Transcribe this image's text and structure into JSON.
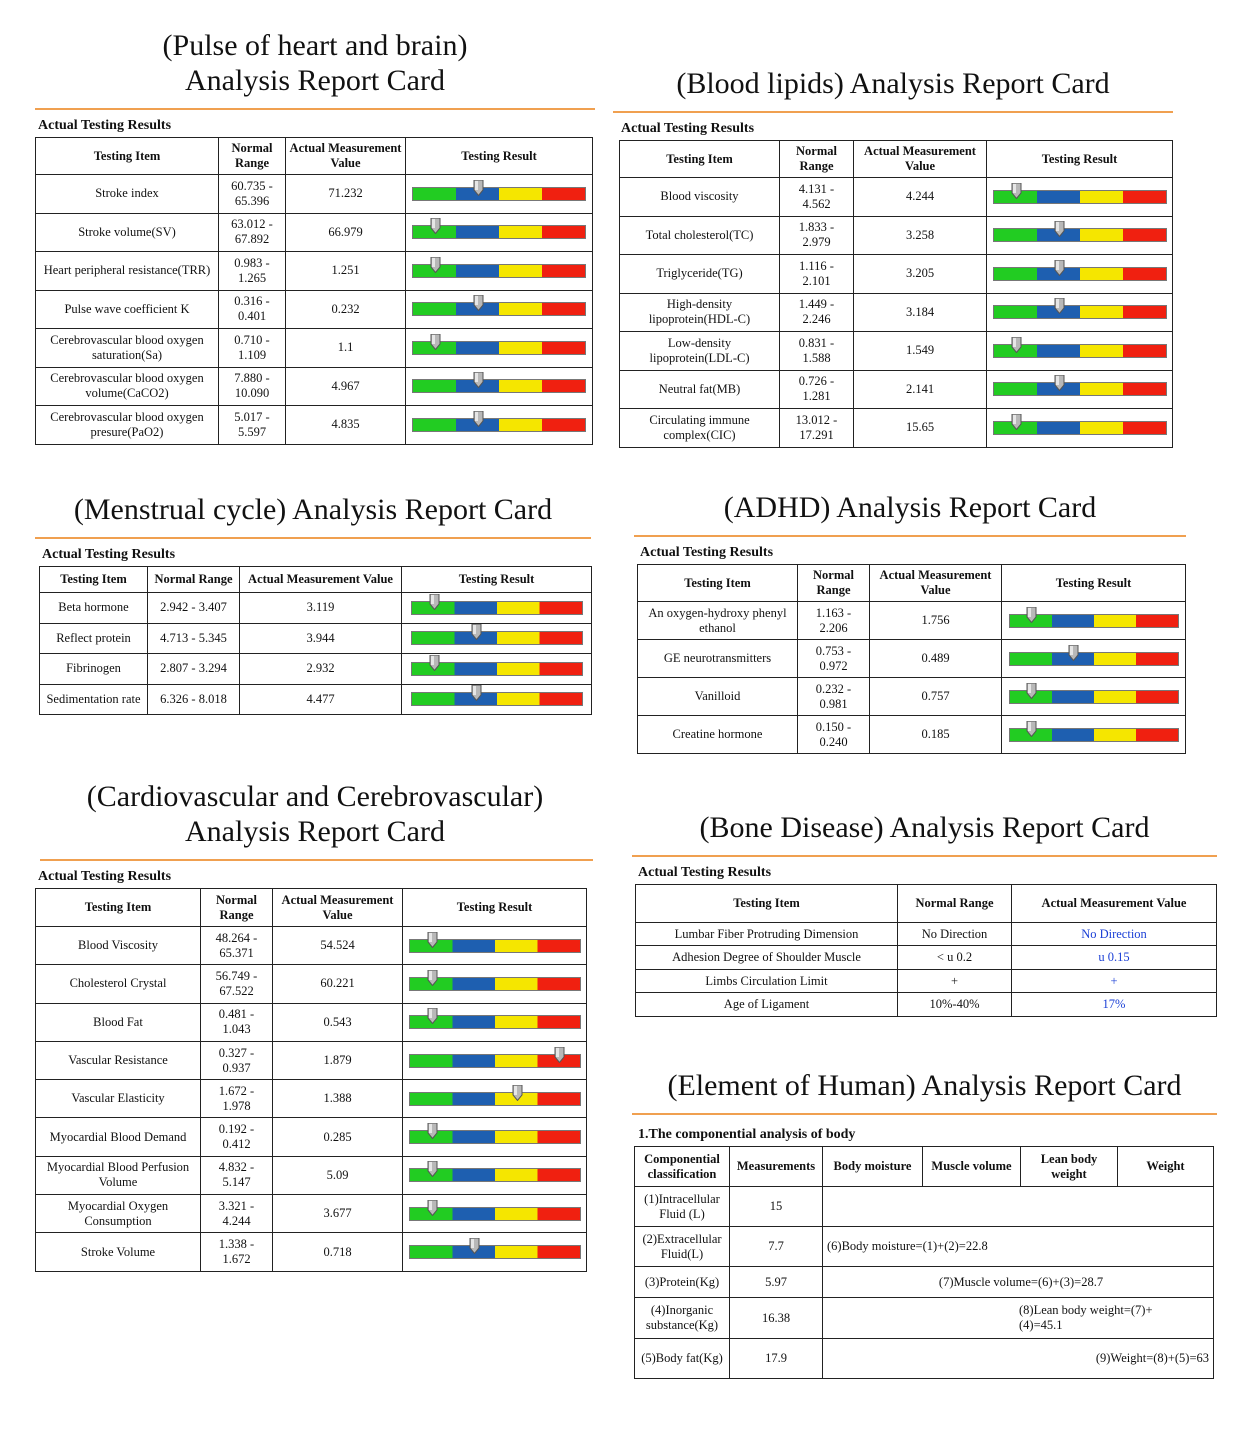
{
  "header_label": "Actual Testing Results",
  "columns": {
    "item": "Testing Item",
    "range": "Normal Range",
    "value": "Actual Measurement Value",
    "result": "Testing Result"
  },
  "bar_colors": [
    "#22cc22",
    "#1e5fb0",
    "#f5e600",
    "#f02010"
  ],
  "cards": {
    "heart_brain": {
      "title": "(Pulse of heart and brain)\nAnalysis Report Card",
      "rows": [
        {
          "item": "Stroke index",
          "range": "60.735 - 65.396",
          "value": "71.232",
          "pos": 0.38
        },
        {
          "item": "Stroke volume(SV)",
          "range": "63.012 - 67.892",
          "value": "66.979",
          "pos": 0.13
        },
        {
          "item": "Heart peripheral resistance(TRR)",
          "range": "0.983 - 1.265",
          "value": "1.251",
          "pos": 0.13
        },
        {
          "item": "Pulse wave coefficient K",
          "range": "0.316 - 0.401",
          "value": "0.232",
          "pos": 0.38
        },
        {
          "item": "Cerebrovascular blood oxygen saturation(Sa)",
          "range": "0.710 - 1.109",
          "value": "1.1",
          "pos": 0.13
        },
        {
          "item": "Cerebrovascular blood oxygen volume(CaCO2)",
          "range": "7.880 - 10.090",
          "value": "4.967",
          "pos": 0.38
        },
        {
          "item": "Cerebrovascular blood oxygen presure(PaO2)",
          "range": "5.017 - 5.597",
          "value": "4.835",
          "pos": 0.38
        }
      ]
    },
    "blood_lipids": {
      "title": "(Blood lipids) Analysis Report Card",
      "rows": [
        {
          "item": "Blood viscosity",
          "range": "4.131 - 4.562",
          "value": "4.244",
          "pos": 0.13
        },
        {
          "item": "Total cholesterol(TC)",
          "range": "1.833 - 2.979",
          "value": "3.258",
          "pos": 0.38
        },
        {
          "item": "Triglyceride(TG)",
          "range": "1.116 - 2.101",
          "value": "3.205",
          "pos": 0.38
        },
        {
          "item": "High-density lipoprotein(HDL-C)",
          "range": "1.449 - 2.246",
          "value": "3.184",
          "pos": 0.38
        },
        {
          "item": "Low-density lipoprotein(LDL-C)",
          "range": "0.831 - 1.588",
          "value": "1.549",
          "pos": 0.13
        },
        {
          "item": "Neutral fat(MB)",
          "range": "0.726 - 1.281",
          "value": "2.141",
          "pos": 0.38
        },
        {
          "item": "Circulating immune complex(CIC)",
          "range": "13.012 - 17.291",
          "value": "15.65",
          "pos": 0.13
        }
      ]
    },
    "menstrual": {
      "title": "(Menstrual cycle) Analysis Report Card",
      "rows": [
        {
          "item": "Beta hormone",
          "range": "2.942 - 3.407",
          "value": "3.119",
          "pos": 0.13
        },
        {
          "item": "Reflect protein",
          "range": "4.713 - 5.345",
          "value": "3.944",
          "pos": 0.38
        },
        {
          "item": "Fibrinogen",
          "range": "2.807 - 3.294",
          "value": "2.932",
          "pos": 0.13
        },
        {
          "item": "Sedimentation rate",
          "range": "6.326 - 8.018",
          "value": "4.477",
          "pos": 0.38
        }
      ]
    },
    "adhd": {
      "title": "(ADHD) Analysis Report Card",
      "rows": [
        {
          "item": "An oxygen-hydroxy phenyl ethanol",
          "range": "1.163 - 2.206",
          "value": "1.756",
          "pos": 0.13
        },
        {
          "item": "GE neurotransmitters",
          "range": "0.753 - 0.972",
          "value": "0.489",
          "pos": 0.38
        },
        {
          "item": "Vanilloid",
          "range": "0.232 - 0.981",
          "value": "0.757",
          "pos": 0.13
        },
        {
          "item": "Creatine hormone",
          "range": "0.150 - 0.240",
          "value": "0.185",
          "pos": 0.13
        }
      ]
    },
    "cardio": {
      "title": "(Cardiovascular and Cerebrovascular)\nAnalysis Report Card",
      "rows": [
        {
          "item": "Blood Viscosity",
          "range": "48.264 - 65.371",
          "value": "54.524",
          "pos": 0.13
        },
        {
          "item": "Cholesterol Crystal",
          "range": "56.749 - 67.522",
          "value": "60.221",
          "pos": 0.13
        },
        {
          "item": "Blood Fat",
          "range": "0.481 - 1.043",
          "value": "0.543",
          "pos": 0.13
        },
        {
          "item": "Vascular Resistance",
          "range": "0.327 - 0.937",
          "value": "1.879",
          "pos": 0.88
        },
        {
          "item": "Vascular Elasticity",
          "range": "1.672 - 1.978",
          "value": "1.388",
          "pos": 0.63
        },
        {
          "item": "Myocardial Blood Demand",
          "range": "0.192 - 0.412",
          "value": "0.285",
          "pos": 0.13
        },
        {
          "item": "Myocardial Blood Perfusion Volume",
          "range": "4.832 - 5.147",
          "value": "5.09",
          "pos": 0.13
        },
        {
          "item": "Myocardial Oxygen Consumption",
          "range": "3.321 - 4.244",
          "value": "3.677",
          "pos": 0.13
        },
        {
          "item": "Stroke Volume",
          "range": "1.338 - 1.672",
          "value": "0.718",
          "pos": 0.38
        }
      ]
    },
    "bone": {
      "title": "(Bone Disease) Analysis Report Card",
      "rows": [
        {
          "item": "Lumbar Fiber Protruding Dimension",
          "range": "No Direction",
          "value": "No Direction"
        },
        {
          "item": "Adhesion Degree of Shoulder Muscle",
          "range": "< u 0.2",
          "value": "u 0.15"
        },
        {
          "item": "Limbs Circulation Limit",
          "range": "+",
          "value": "+"
        },
        {
          "item": "Age of Ligament",
          "range": "10%-40%",
          "value": "17%"
        }
      ]
    },
    "element": {
      "title": "(Element of Human) Analysis Report Card",
      "subtitle": "1.The componential analysis of body",
      "headers": [
        "Componential classification",
        "Measurements",
        "Body moisture",
        "Muscle volume",
        "Lean body weight",
        "Weight"
      ],
      "rows": [
        {
          "item": "(1)Intracellular Fluid (L)",
          "value": "15",
          "note": ""
        },
        {
          "item": "(2)Extracellular Fluid(L)",
          "value": "7.7",
          "note": "(6)Body moisture=(1)+(2)=22.8"
        },
        {
          "item": "(3)Protein(Kg)",
          "value": "5.97",
          "note": "(7)Muscle volume=(6)+(3)=28.7"
        },
        {
          "item": "(4)Inorganic substance(Kg)",
          "value": "16.38",
          "note": "(8)Lean body weight=(7)+(4)=45.1"
        },
        {
          "item": "(5)Body fat(Kg)",
          "value": "17.9",
          "note": "(9)Weight=(8)+(5)=63"
        }
      ]
    }
  }
}
